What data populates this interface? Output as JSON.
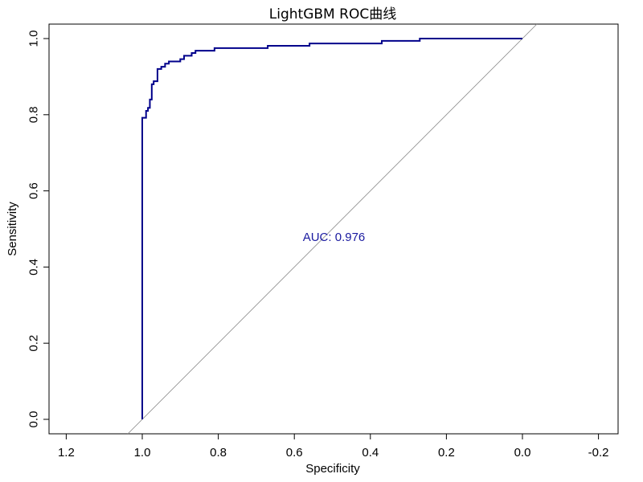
{
  "chart_data": {
    "type": "line",
    "title": "LightGBM ROC曲线",
    "xlabel": "Specificity",
    "ylabel": "Sensitivity",
    "x_reversed": true,
    "xlim": [
      1.2,
      -0.2
    ],
    "ylim": [
      0.0,
      1.0
    ],
    "x_ticks": [
      1.2,
      1.0,
      0.8,
      0.6,
      0.4,
      0.2,
      0.0,
      -0.2
    ],
    "x_tick_labels": [
      "1.2",
      "1.0",
      "0.8",
      "0.6",
      "0.4",
      "0.2",
      "0.0",
      "-0.2"
    ],
    "y_ticks": [
      0.0,
      0.2,
      0.4,
      0.6,
      0.8,
      1.0
    ],
    "y_tick_labels": [
      "0.0",
      "0.2",
      "0.4",
      "0.6",
      "0.8",
      "1.0"
    ],
    "grid": false,
    "legend": "none",
    "reference_line": {
      "from": [
        1.0,
        0.0
      ],
      "to": [
        0.0,
        1.0
      ],
      "color": "#888888"
    },
    "annotation": {
      "text": "AUC: 0.976",
      "x": 0.5,
      "y": 0.5,
      "color": "#1a1aa0"
    },
    "series": [
      {
        "color": "#00008b",
        "specificity": [
          1.0,
          1.0,
          0.99,
          0.99,
          0.985,
          0.985,
          0.98,
          0.98,
          0.975,
          0.975,
          0.97,
          0.97,
          0.96,
          0.96,
          0.95,
          0.95,
          0.94,
          0.94,
          0.93,
          0.93,
          0.9,
          0.9,
          0.89,
          0.89,
          0.87,
          0.87,
          0.86,
          0.86,
          0.81,
          0.81,
          0.67,
          0.67,
          0.56,
          0.56,
          0.37,
          0.37,
          0.27,
          0.27,
          0.0
        ],
        "sensitivity": [
          0.0,
          0.792,
          0.792,
          0.81,
          0.81,
          0.818,
          0.818,
          0.84,
          0.84,
          0.88,
          0.88,
          0.888,
          0.888,
          0.92,
          0.92,
          0.926,
          0.926,
          0.934,
          0.934,
          0.94,
          0.94,
          0.946,
          0.946,
          0.955,
          0.955,
          0.962,
          0.962,
          0.968,
          0.968,
          0.975,
          0.975,
          0.981,
          0.981,
          0.987,
          0.987,
          0.994,
          0.994,
          1.0,
          1.0
        ]
      }
    ],
    "colors": {
      "curve": "#00008b",
      "reference": "#888888",
      "annotation": "#1a1aa0",
      "frame": "#000000"
    }
  }
}
